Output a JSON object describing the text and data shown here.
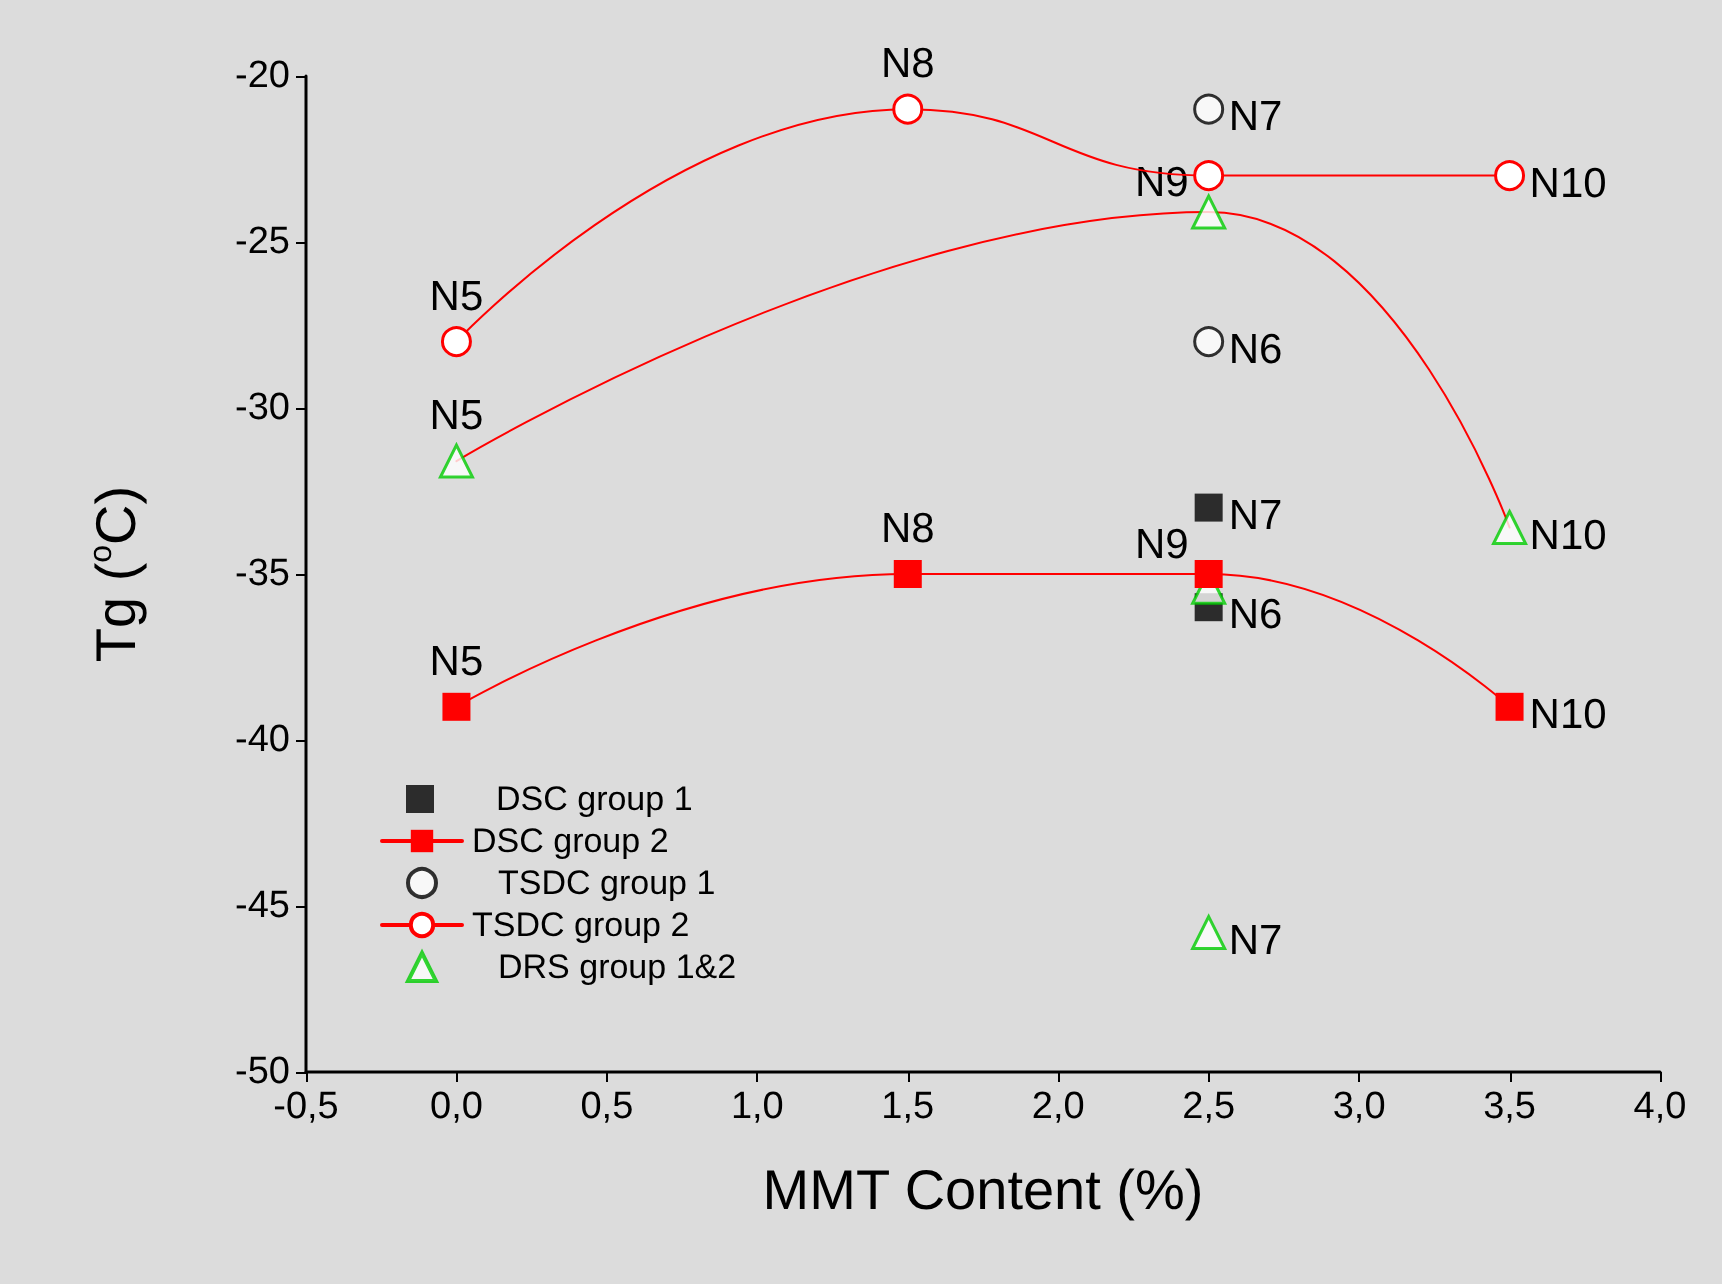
{
  "chart_data": {
    "type": "scatter",
    "xlabel": "MMT Content (%)",
    "ylabel": "Tg ($^{o}$C)",
    "xlim": [
      -0.5,
      4.0
    ],
    "xticks": [
      {
        "value": -0.5,
        "label": "-0,5"
      },
      {
        "value": 0,
        "label": "0,0"
      },
      {
        "value": 0.5,
        "label": "0,5"
      },
      {
        "value": 1,
        "label": "1,0"
      },
      {
        "value": 1.5,
        "label": "1,5"
      },
      {
        "value": 2,
        "label": "2,0"
      },
      {
        "value": 2.5,
        "label": "2,5"
      },
      {
        "value": 3,
        "label": "3,0"
      },
      {
        "value": 3.5,
        "label": "3,5"
      },
      {
        "value": 4,
        "label": "4,0"
      }
    ],
    "ylim": [
      -50,
      -20
    ],
    "yticks": [
      -50,
      -45,
      -40,
      -35,
      -30,
      -25,
      -20
    ],
    "grid": false,
    "legend": "bottom left",
    "series": [
      {
        "name": "DSC group 1",
        "marker": "square",
        "color": "#000000",
        "x": [
          2.5,
          2.5
        ],
        "values": [
          -33,
          -36
        ]
      },
      {
        "name": "DSC group 2",
        "type": "line",
        "marker": "square",
        "color": "#ff0000",
        "x": [
          0,
          1.5,
          2.5,
          3.5
        ],
        "values": [
          -39,
          -35,
          -35,
          -39
        ]
      },
      {
        "name": "TSDC group 1",
        "marker": "circle",
        "color": "#000000",
        "x": [
          2.5,
          2.5
        ],
        "values": [
          -21,
          -28
        ]
      },
      {
        "name": "TSDC group 2",
        "type": "line",
        "marker": "circle",
        "color": "#ff0000",
        "x": [
          0,
          1.5,
          2.5,
          3.5
        ],
        "values": [
          -28,
          -21,
          -23,
          -23
        ]
      },
      {
        "name": "DRS group 1&2",
        "marker": "triangle",
        "color": "#00cc00",
        "x": [
          0,
          2.5,
          2.5,
          2.5,
          3.5
        ],
        "values": [
          -31.6,
          -24.1,
          -35.4,
          -45.8,
          -33.6
        ]
      },
      {
        "type": "line",
        "marker": "none",
        "color": "#ff0000",
        "x": [
          0,
          2.5,
          3.5
        ],
        "values": [
          -31.6,
          -24.1,
          -33.6
        ]
      }
    ],
    "annotations": [
      {
        "text": "N8",
        "x": 1.5,
        "y": -21
      },
      {
        "text": "N7",
        "x": 2.5,
        "y": -21
      },
      {
        "text": "N9",
        "x": 2.5,
        "y": -24.1
      },
      {
        "text": "N10",
        "x": 3.5,
        "y": -23
      },
      {
        "text": "N5",
        "x": 0,
        "y": -28
      },
      {
        "text": "N6",
        "x": 2.5,
        "y": -28
      },
      {
        "text": "N5",
        "x": 0,
        "y": -31.6
      },
      {
        "text": "N7",
        "x": 2.5,
        "y": -33
      },
      {
        "text": "N10",
        "x": 3.5,
        "y": -33.6
      },
      {
        "text": "N8",
        "x": 1.5,
        "y": -35
      },
      {
        "text": "N9",
        "x": 2.5,
        "y": -35
      },
      {
        "text": "N6",
        "x": 2.5,
        "y": -36
      },
      {
        "text": "N5",
        "x": 0,
        "y": -39
      },
      {
        "text": "N10",
        "x": 3.5,
        "y": -39
      },
      {
        "text": "N7",
        "x": 2.5,
        "y": -45.8
      }
    ]
  }
}
